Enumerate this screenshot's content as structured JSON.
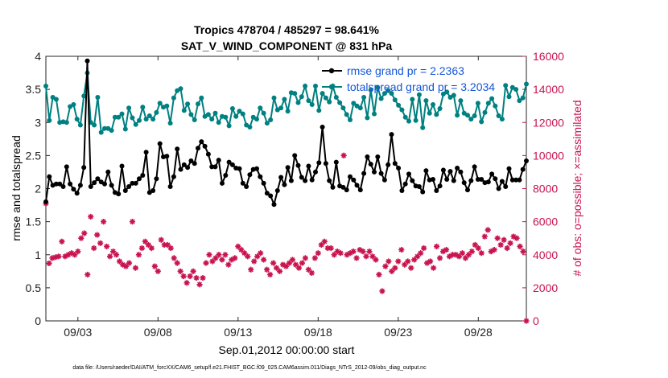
{
  "chart_data": {
    "type": "line",
    "title": "Tropics 478704 / 485297 = 98.641%",
    "subtitle": "SAT_V_WIND_COMPONENT @ 831 hPa",
    "xlabel": "Sep.01,2012 00:00:00 start",
    "ylabel_left": "rmse and totalspread",
    "ylabel_right": "# of obs: o=possible; ×=assimilated",
    "x_tick_labels": [
      "09/03",
      "09/08",
      "09/13",
      "09/18",
      "09/23",
      "09/28"
    ],
    "x_tick_days": [
      3,
      8,
      13,
      18,
      23,
      28
    ],
    "xlim_days": [
      1.0,
      31.0
    ],
    "ylim_left": [
      0,
      4
    ],
    "yticks_left": [
      "0",
      "0.5",
      "1",
      "1.5",
      "2",
      "2.5",
      "3",
      "3.5",
      "4"
    ],
    "ylim_right": [
      0,
      16000
    ],
    "yticks_right": [
      "0",
      "2000",
      "4000",
      "6000",
      "8000",
      "10000",
      "12000",
      "14000",
      "16000"
    ],
    "legend_position": "top-right",
    "colors": {
      "rmse": "#000000",
      "totalspread": "#008080",
      "obs": "#c8144f",
      "legend_text": "#1456d8"
    },
    "series": [
      {
        "name": "rmse grand pr = 2.2363",
        "axis": "left",
        "marker": "circle",
        "values": [
          1.8,
          2.18,
          2.05,
          2.07,
          2.07,
          2.03,
          2.33,
          2.07,
          1.99,
          1.93,
          2.05,
          2.32,
          3.93,
          2.03,
          2.09,
          2.15,
          2.1,
          2.07,
          2.25,
          2.05,
          1.94,
          1.92,
          2.34,
          1.97,
          2.03,
          2.08,
          2.08,
          2.15,
          2.2,
          2.55,
          1.94,
          1.97,
          2.15,
          2.68,
          2.48,
          2.49,
          2.03,
          2.18,
          2.6,
          2.29,
          2.36,
          2.32,
          2.42,
          2.38,
          2.61,
          2.71,
          2.64,
          2.52,
          2.33,
          2.33,
          2.43,
          2.08,
          2.2,
          2.4,
          2.36,
          2.31,
          2.3,
          2.08,
          2.03,
          2.21,
          2.29,
          2.3,
          2.18,
          2.08,
          1.93,
          1.89,
          1.76,
          1.97,
          2.17,
          2.06,
          2.32,
          2.12,
          2.5,
          2.35,
          2.17,
          2.12,
          2.34,
          2.13,
          2.25,
          2.39,
          2.93,
          2.38,
          2.12,
          2.02,
          2.4,
          2.04,
          2.02,
          1.98,
          2.18,
          2.13,
          2.05,
          1.98,
          2.23,
          2.48,
          2.37,
          2.25,
          2.48,
          2.23,
          2.13,
          2.36,
          2.82,
          2.38,
          2.31,
          1.97,
          2.07,
          2.22,
          2.12,
          2.04,
          2.03,
          1.95,
          2.27,
          2.13,
          2.14,
          1.97,
          2.04,
          2.28,
          2.14,
          2.26,
          2.12,
          2.31,
          2.25,
          2.09,
          1.98,
          2.12,
          2.33,
          2.14,
          2.14,
          2.09,
          2.1,
          2.22,
          2.15,
          2.0,
          2.11,
          2.03,
          2.3,
          2.13,
          2.13,
          2.13,
          2.29,
          2.42
        ]
      },
      {
        "name": "totalspread grand pr = 3.2034",
        "axis": "left",
        "marker": "circle",
        "values": [
          3.55,
          3.03,
          3.38,
          3.35,
          3.0,
          3.01,
          3.0,
          3.24,
          3.27,
          3.05,
          2.96,
          3.4,
          3.75,
          3.0,
          2.96,
          3.38,
          2.85,
          2.91,
          2.91,
          2.88,
          3.08,
          3.08,
          3.13,
          2.9,
          3.22,
          3.07,
          2.97,
          3.03,
          3.23,
          3.05,
          3.1,
          3.05,
          3.15,
          3.29,
          3.23,
          3.25,
          2.99,
          3.37,
          3.48,
          3.51,
          3.18,
          3.28,
          3.12,
          3.04,
          3.28,
          3.37,
          3.09,
          3.12,
          3.05,
          3.14,
          3.0,
          3.09,
          3.08,
          2.95,
          3.21,
          3.09,
          3.17,
          3.13,
          2.96,
          2.93,
          3.08,
          3.05,
          3.22,
          3.14,
          2.99,
          3.04,
          3.37,
          3.19,
          3.22,
          3.35,
          3.17,
          3.45,
          3.44,
          3.3,
          3.39,
          3.55,
          3.33,
          3.27,
          3.55,
          3.18,
          3.44,
          3.37,
          3.31,
          3.55,
          3.38,
          3.3,
          3.22,
          3.12,
          3.04,
          3.29,
          3.25,
          3.22,
          3.38,
          3.07,
          3.49,
          3.13,
          3.53,
          3.36,
          3.44,
          3.48,
          3.44,
          3.34,
          3.26,
          3.19,
          3.08,
          3.02,
          3.35,
          3.03,
          3.42,
          2.92,
          3.33,
          3.14,
          3.27,
          3.12,
          3.21,
          3.43,
          3.46,
          3.38,
          3.41,
          3.11,
          3.33,
          3.14,
          3.11,
          3.05,
          3.1,
          3.29,
          3.01,
          3.15,
          3.29,
          3.36,
          3.25,
          3.1,
          3.05,
          3.56,
          3.39,
          3.53,
          3.5,
          3.33,
          3.37,
          3.58
        ]
      },
      {
        "name": "# of obs (assimilated)",
        "axis": "right",
        "marker": "cross",
        "values": [
          7100,
          3480,
          3800,
          3850,
          3900,
          4800,
          3900,
          4000,
          4100,
          4000,
          4200,
          5000,
          5300,
          2800,
          6300,
          4400,
          5200,
          4700,
          6000,
          4500,
          3900,
          4200,
          4000,
          3600,
          3400,
          3300,
          3500,
          6000,
          3200,
          4000,
          4400,
          4800,
          4600,
          4400,
          3300,
          3000,
          4900,
          4600,
          4600,
          4400,
          3800,
          3500,
          3000,
          2700,
          2300,
          2700,
          3000,
          2600,
          2200,
          2600,
          3500,
          4000,
          3600,
          3800,
          4000,
          3700,
          4000,
          3400,
          3700,
          3800,
          4500,
          4300,
          4100,
          3900,
          3100,
          3600,
          3900,
          4100,
          3700,
          3100,
          2800,
          3500,
          3200,
          3000,
          3400,
          3300,
          3500,
          3700,
          3400,
          3200,
          3500,
          3800,
          3100,
          2900,
          3800,
          4100,
          4600,
          4800,
          4400,
          4400,
          4000,
          4200,
          4100,
          10000,
          4000,
          4100,
          4200,
          3800,
          4300,
          4200,
          3900,
          4200,
          3900,
          3700,
          2800,
          1800,
          3300,
          3600,
          3000,
          3200,
          3600,
          4300,
          3400,
          3600,
          3200,
          3700,
          3900,
          4100,
          4400,
          3500,
          3600,
          3200,
          4500,
          3800,
          4200,
          4300,
          3900,
          4000,
          4000,
          3900,
          4100,
          3800,
          4000,
          4200,
          4600,
          4400,
          4100,
          5100,
          5500,
          4200,
          4300,
          5000,
          4600,
          4900,
          4400,
          4700,
          5100,
          5000,
          4500,
          4200,
          0
        ]
      }
    ]
  },
  "footer": "data file: /Users/raeder/DAI/ATM_forcXX/CAM6_setup/f.e21.FHIST_BGC.f09_025.CAM6assim.011/Diags_NTrS_2012-09/obs_diag_output.nc"
}
